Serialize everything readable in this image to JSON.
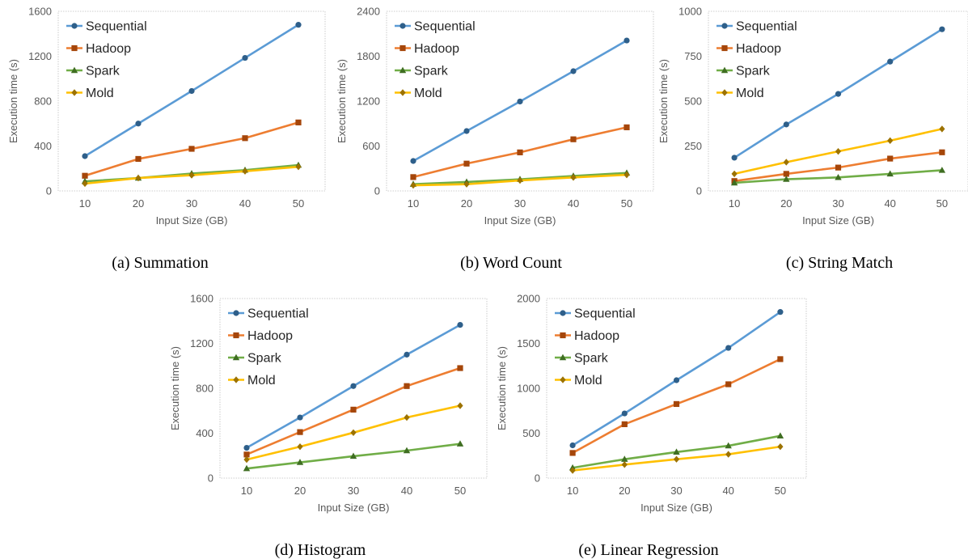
{
  "colors": {
    "Sequential": "#5b9bd5",
    "Hadoop": "#ed7d31",
    "Spark": "#70ad47",
    "Mold": "#ffc000",
    "Sequential_marker": "#2e5f8a",
    "Hadoop_marker": "#a5460a",
    "Spark_marker": "#3f6e22",
    "Mold_marker": "#9c7200",
    "frame": "#bfbfbf"
  },
  "chart_data": [
    {
      "type": "line",
      "caption": "(a) Summation",
      "xlabel": "Input Size (GB)",
      "ylabel": "Execution time (s)",
      "categories": [
        10,
        20,
        30,
        40,
        50
      ],
      "ylim": [
        0,
        1600
      ],
      "yticks": [
        0,
        400,
        800,
        1200,
        1600
      ],
      "legend_position": "top-left",
      "series": [
        {
          "name": "Sequential",
          "values": [
            310,
            600,
            890,
            1185,
            1480
          ]
        },
        {
          "name": "Hadoop",
          "values": [
            135,
            285,
            375,
            470,
            610
          ]
        },
        {
          "name": "Spark",
          "values": [
            85,
            115,
            155,
            185,
            230
          ]
        },
        {
          "name": "Mold",
          "values": [
            65,
            115,
            140,
            175,
            215
          ]
        }
      ]
    },
    {
      "type": "line",
      "caption": "(b) Word Count",
      "xlabel": "Input Size (GB)",
      "ylabel": "Execution time (s)",
      "categories": [
        10,
        20,
        30,
        40,
        50
      ],
      "ylim": [
        0,
        2400
      ],
      "yticks": [
        0,
        600,
        1200,
        1800,
        2400
      ],
      "legend_position": "top-left",
      "series": [
        {
          "name": "Sequential",
          "values": [
            400,
            800,
            1195,
            1600,
            2010
          ]
        },
        {
          "name": "Hadoop",
          "values": [
            185,
            365,
            515,
            690,
            850
          ]
        },
        {
          "name": "Spark",
          "values": [
            90,
            120,
            155,
            200,
            240
          ]
        },
        {
          "name": "Mold",
          "values": [
            75,
            90,
            140,
            180,
            215
          ]
        }
      ]
    },
    {
      "type": "line",
      "caption": "(c) String Match",
      "xlabel": "Input Size (GB)",
      "ylabel": "Execution time (s)",
      "categories": [
        10,
        20,
        30,
        40,
        50
      ],
      "ylim": [
        0,
        1000
      ],
      "yticks": [
        0,
        250,
        500,
        750,
        1000
      ],
      "legend_position": "top-left",
      "series": [
        {
          "name": "Sequential",
          "values": [
            185,
            370,
            540,
            720,
            900
          ]
        },
        {
          "name": "Hadoop",
          "values": [
            55,
            95,
            130,
            180,
            215
          ]
        },
        {
          "name": "Spark",
          "values": [
            45,
            65,
            75,
            95,
            115
          ]
        },
        {
          "name": "Mold",
          "values": [
            95,
            160,
            220,
            280,
            345
          ]
        }
      ]
    },
    {
      "type": "line",
      "caption": "(d) Histogram",
      "xlabel": "Input Size (GB)",
      "ylabel": "Execution time (s)",
      "categories": [
        10,
        20,
        30,
        40,
        50
      ],
      "ylim": [
        0,
        1600
      ],
      "yticks": [
        0,
        400,
        800,
        1200,
        1600
      ],
      "legend_position": "top-left",
      "series": [
        {
          "name": "Sequential",
          "values": [
            270,
            540,
            820,
            1100,
            1365
          ]
        },
        {
          "name": "Hadoop",
          "values": [
            210,
            410,
            610,
            820,
            980
          ]
        },
        {
          "name": "Spark",
          "values": [
            85,
            140,
            195,
            245,
            305
          ]
        },
        {
          "name": "Mold",
          "values": [
            165,
            280,
            405,
            540,
            645
          ]
        }
      ]
    },
    {
      "type": "line",
      "caption": "(e) Linear Regression",
      "xlabel": "Input Size (GB)",
      "ylabel": "Execution time (s)",
      "categories": [
        10,
        20,
        30,
        40,
        50
      ],
      "ylim": [
        0,
        2000
      ],
      "yticks": [
        0,
        500,
        1000,
        1500,
        2000
      ],
      "legend_position": "top-left",
      "series": [
        {
          "name": "Sequential",
          "values": [
            365,
            720,
            1090,
            1450,
            1850
          ]
        },
        {
          "name": "Hadoop",
          "values": [
            280,
            600,
            825,
            1045,
            1325
          ]
        },
        {
          "name": "Spark",
          "values": [
            115,
            210,
            290,
            360,
            470
          ]
        },
        {
          "name": "Mold",
          "values": [
            85,
            150,
            210,
            265,
            350
          ]
        }
      ]
    }
  ]
}
